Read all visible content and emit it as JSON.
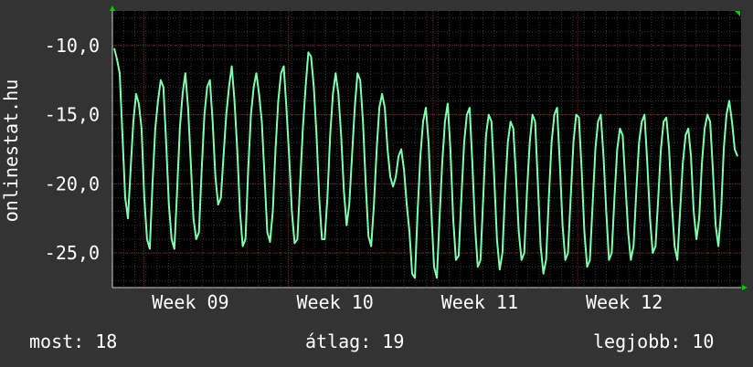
{
  "chart_data": {
    "type": "line",
    "ylabel": "onlinestat.hu",
    "ylim": [
      -27.5,
      -7.5
    ],
    "y_ticks": [
      "-10,0",
      "-15,0",
      "-20,0",
      "-25,0"
    ],
    "y_tick_values": [
      -10,
      -15,
      -20,
      -25
    ],
    "x_ticks": [
      "Week 09",
      "Week 10",
      "Week 11",
      "Week 12"
    ],
    "x_tick_positions": [
      0.05,
      0.28,
      0.51,
      0.74
    ],
    "grid": true,
    "series": [
      {
        "color": "#80ffb0",
        "values": [
          -10.2,
          -11.0,
          -12.0,
          -16.5,
          -21.0,
          -22.5,
          -19.0,
          -15.5,
          -13.5,
          -14.2,
          -16.0,
          -21.0,
          -24.0,
          -24.7,
          -20.0,
          -16.0,
          -14.0,
          -12.5,
          -13.0,
          -17.0,
          -21.5,
          -24.0,
          -24.7,
          -20.5,
          -16.0,
          -13.5,
          -12.0,
          -14.5,
          -18.5,
          -22.5,
          -24.0,
          -23.5,
          -19.0,
          -15.0,
          -13.0,
          -12.5,
          -15.5,
          -19.5,
          -21.5,
          -21.0,
          -18.0,
          -15.0,
          -13.0,
          -11.5,
          -14.0,
          -17.5,
          -22.0,
          -24.5,
          -24.0,
          -19.0,
          -15.0,
          -13.0,
          -12.0,
          -13.5,
          -15.5,
          -19.5,
          -23.5,
          -24.2,
          -22.0,
          -17.5,
          -14.0,
          -12.0,
          -11.5,
          -14.5,
          -18.0,
          -22.0,
          -24.3,
          -24.0,
          -20.0,
          -16.0,
          -13.0,
          -10.5,
          -10.8,
          -13.0,
          -16.5,
          -21.0,
          -24.0,
          -24.0,
          -21.0,
          -16.5,
          -13.5,
          -12.0,
          -13.5,
          -16.5,
          -20.5,
          -23.0,
          -21.5,
          -18.0,
          -14.5,
          -12.0,
          -12.5,
          -15.5,
          -20.0,
          -23.8,
          -24.5,
          -21.5,
          -17.5,
          -14.5,
          -13.5,
          -14.5,
          -17.5,
          -19.5,
          -20.2,
          -19.5,
          -18.0,
          -17.5,
          -19.0,
          -21.5,
          -23.5,
          -26.5,
          -26.8,
          -22.0,
          -18.0,
          -15.5,
          -14.5,
          -17.0,
          -22.0,
          -26.0,
          -26.8,
          -22.5,
          -18.5,
          -15.5,
          -14.2,
          -17.5,
          -22.5,
          -25.5,
          -25.2,
          -21.0,
          -17.0,
          -15.0,
          -14.5,
          -18.5,
          -23.0,
          -26.0,
          -25.5,
          -21.0,
          -16.5,
          -15.0,
          -15.5,
          -19.5,
          -24.0,
          -26.2,
          -25.0,
          -20.5,
          -17.0,
          -15.5,
          -16.0,
          -19.5,
          -23.5,
          -25.5,
          -25.0,
          -20.5,
          -17.0,
          -15.0,
          -15.5,
          -20.0,
          -24.5,
          -26.5,
          -25.5,
          -21.0,
          -17.0,
          -15.0,
          -14.5,
          -18.5,
          -23.0,
          -25.5,
          -25.0,
          -21.0,
          -17.0,
          -15.0,
          -15.2,
          -19.0,
          -23.5,
          -26.0,
          -25.5,
          -21.5,
          -17.5,
          -15.5,
          -15.0,
          -18.0,
          -22.0,
          -25.5,
          -25.0,
          -21.0,
          -17.5,
          -16.0,
          -16.5,
          -20.0,
          -23.5,
          -25.5,
          -24.5,
          -20.5,
          -17.0,
          -15.5,
          -15.0,
          -18.5,
          -22.5,
          -25.0,
          -24.5,
          -21.0,
          -17.5,
          -15.5,
          -15.2,
          -17.5,
          -21.5,
          -24.5,
          -25.5,
          -22.0,
          -18.5,
          -16.5,
          -16.0,
          -18.0,
          -22.0,
          -24.0,
          -22.5,
          -18.5,
          -16.0,
          -15.0,
          -15.5,
          -19.0,
          -23.0,
          -24.5,
          -22.0,
          -17.5,
          -15.0,
          -14.0,
          -15.5,
          -17.5,
          -18.0
        ]
      }
    ]
  },
  "footer": {
    "current": "most: 18",
    "average": "átlag: 19",
    "best": "legjobb: 10"
  }
}
